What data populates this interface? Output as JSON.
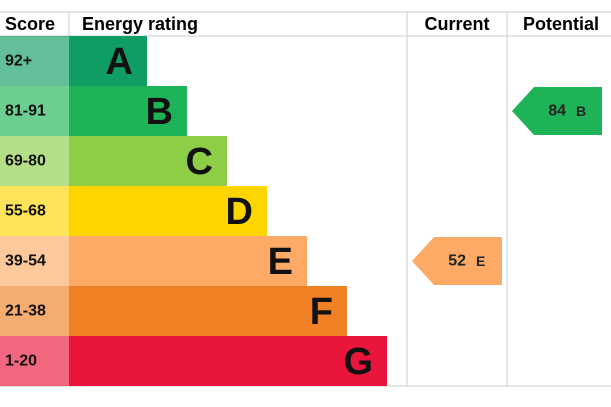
{
  "header": {
    "score": "Score",
    "rating": "Energy rating",
    "current": "Current",
    "potential": "Potential"
  },
  "bands": [
    {
      "score": "92+",
      "letter": "A",
      "color": "#0f9d63"
    },
    {
      "score": "81-91",
      "letter": "B",
      "color": "#1fb358"
    },
    {
      "score": "69-80",
      "letter": "C",
      "color": "#8dce46"
    },
    {
      "score": "55-68",
      "letter": "D",
      "color": "#ffd500"
    },
    {
      "score": "39-54",
      "letter": "E",
      "color": "#fcaa65"
    },
    {
      "score": "21-38",
      "letter": "F",
      "color": "#ef8023"
    },
    {
      "score": "1-20",
      "letter": "G",
      "color": "#e9153b"
    }
  ],
  "current": {
    "value": 52,
    "letter": "E"
  },
  "potential": {
    "value": 84,
    "letter": "B"
  }
}
